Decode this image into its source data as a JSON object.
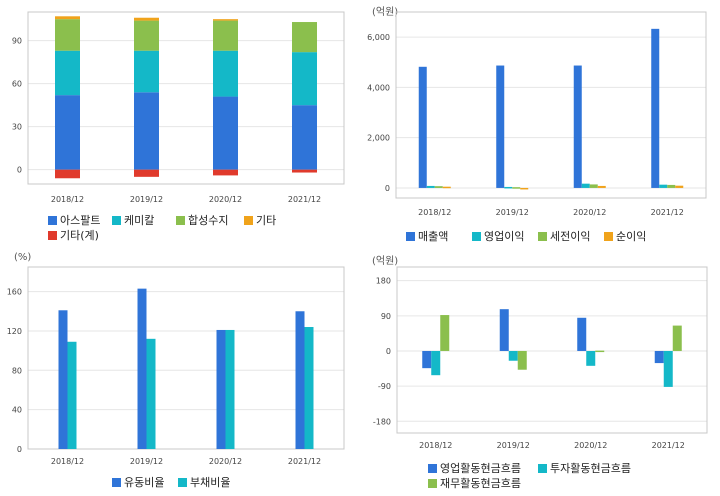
{
  "colors": {
    "blue": "#2f74d8",
    "cyan": "#14b8c8",
    "green": "#8bbf4d",
    "orange": "#f0a31b",
    "red": "#e03a2c",
    "grid": "#e6e6e6",
    "frame": "#c8c8c8"
  },
  "chart_data": [
    {
      "type": "bar",
      "stacked": true,
      "unit": "",
      "categories": [
        "2018/12",
        "2019/12",
        "2020/12",
        "2021/12"
      ],
      "series": [
        {
          "name": "아스팔트",
          "color": "#2f74d8",
          "values": [
            52,
            54,
            51,
            45
          ]
        },
        {
          "name": "케미칼",
          "color": "#14b8c8",
          "values": [
            31,
            29,
            32,
            37
          ]
        },
        {
          "name": "합성수지",
          "color": "#8bbf4d",
          "values": [
            22,
            21,
            21,
            21
          ]
        },
        {
          "name": "기타",
          "color": "#f0a31b",
          "values": [
            2,
            2,
            1,
            0
          ]
        },
        {
          "name": "기타(계)",
          "color": "#e03a2c",
          "values": [
            -6,
            -5,
            -4,
            -2
          ]
        }
      ],
      "yticks": [
        0,
        30,
        60,
        90
      ],
      "ylim": [
        -10,
        110
      ],
      "grid": true,
      "legend": "bottom"
    },
    {
      "type": "bar",
      "unit": "(억원)",
      "categories": [
        "2018/12",
        "2019/12",
        "2020/12",
        "2021/12"
      ],
      "series": [
        {
          "name": "매출액",
          "color": "#2f74d8",
          "values": [
            4820,
            4870,
            4870,
            6330
          ]
        },
        {
          "name": "영업이익",
          "color": "#14b8c8",
          "values": [
            80,
            40,
            170,
            130
          ]
        },
        {
          "name": "세전이익",
          "color": "#8bbf4d",
          "values": [
            70,
            30,
            140,
            120
          ]
        },
        {
          "name": "순이익",
          "color": "#f0a31b",
          "values": [
            50,
            -40,
            80,
            90
          ]
        }
      ],
      "yticks": [
        0,
        2000,
        4000,
        6000
      ],
      "ytick_labels": [
        "0",
        "2,000",
        "4,000",
        "6,000"
      ],
      "ylim": [
        -400,
        7000
      ],
      "grid": true,
      "legend": "bottom"
    },
    {
      "type": "bar",
      "unit": "(%)",
      "categories": [
        "2018/12",
        "2019/12",
        "2020/12",
        "2021/12"
      ],
      "series": [
        {
          "name": "유동비율",
          "color": "#2f74d8",
          "values": [
            141,
            163,
            121,
            140
          ]
        },
        {
          "name": "부채비율",
          "color": "#14b8c8",
          "values": [
            109,
            112,
            121,
            124
          ]
        }
      ],
      "yticks": [
        0,
        40,
        80,
        120,
        160
      ],
      "ylim": [
        0,
        185
      ],
      "grid": true,
      "legend": "bottom"
    },
    {
      "type": "bar",
      "unit": "(억원)",
      "categories": [
        "2018/12",
        "2019/12",
        "2020/12",
        "2021/12"
      ],
      "series": [
        {
          "name": "영업활동현금흐름",
          "color": "#2f74d8",
          "values": [
            -44,
            107,
            85,
            -31
          ]
        },
        {
          "name": "투자활동현금흐름",
          "color": "#14b8c8",
          "values": [
            -62,
            -25,
            -38,
            -92
          ]
        },
        {
          "name": "재무활동현금흐름",
          "color": "#8bbf4d",
          "values": [
            92,
            -48,
            1,
            65
          ]
        }
      ],
      "yticks": [
        -180,
        -90,
        0,
        90,
        180
      ],
      "ylim": [
        -210,
        215
      ],
      "grid": true,
      "legend": "bottom"
    }
  ]
}
